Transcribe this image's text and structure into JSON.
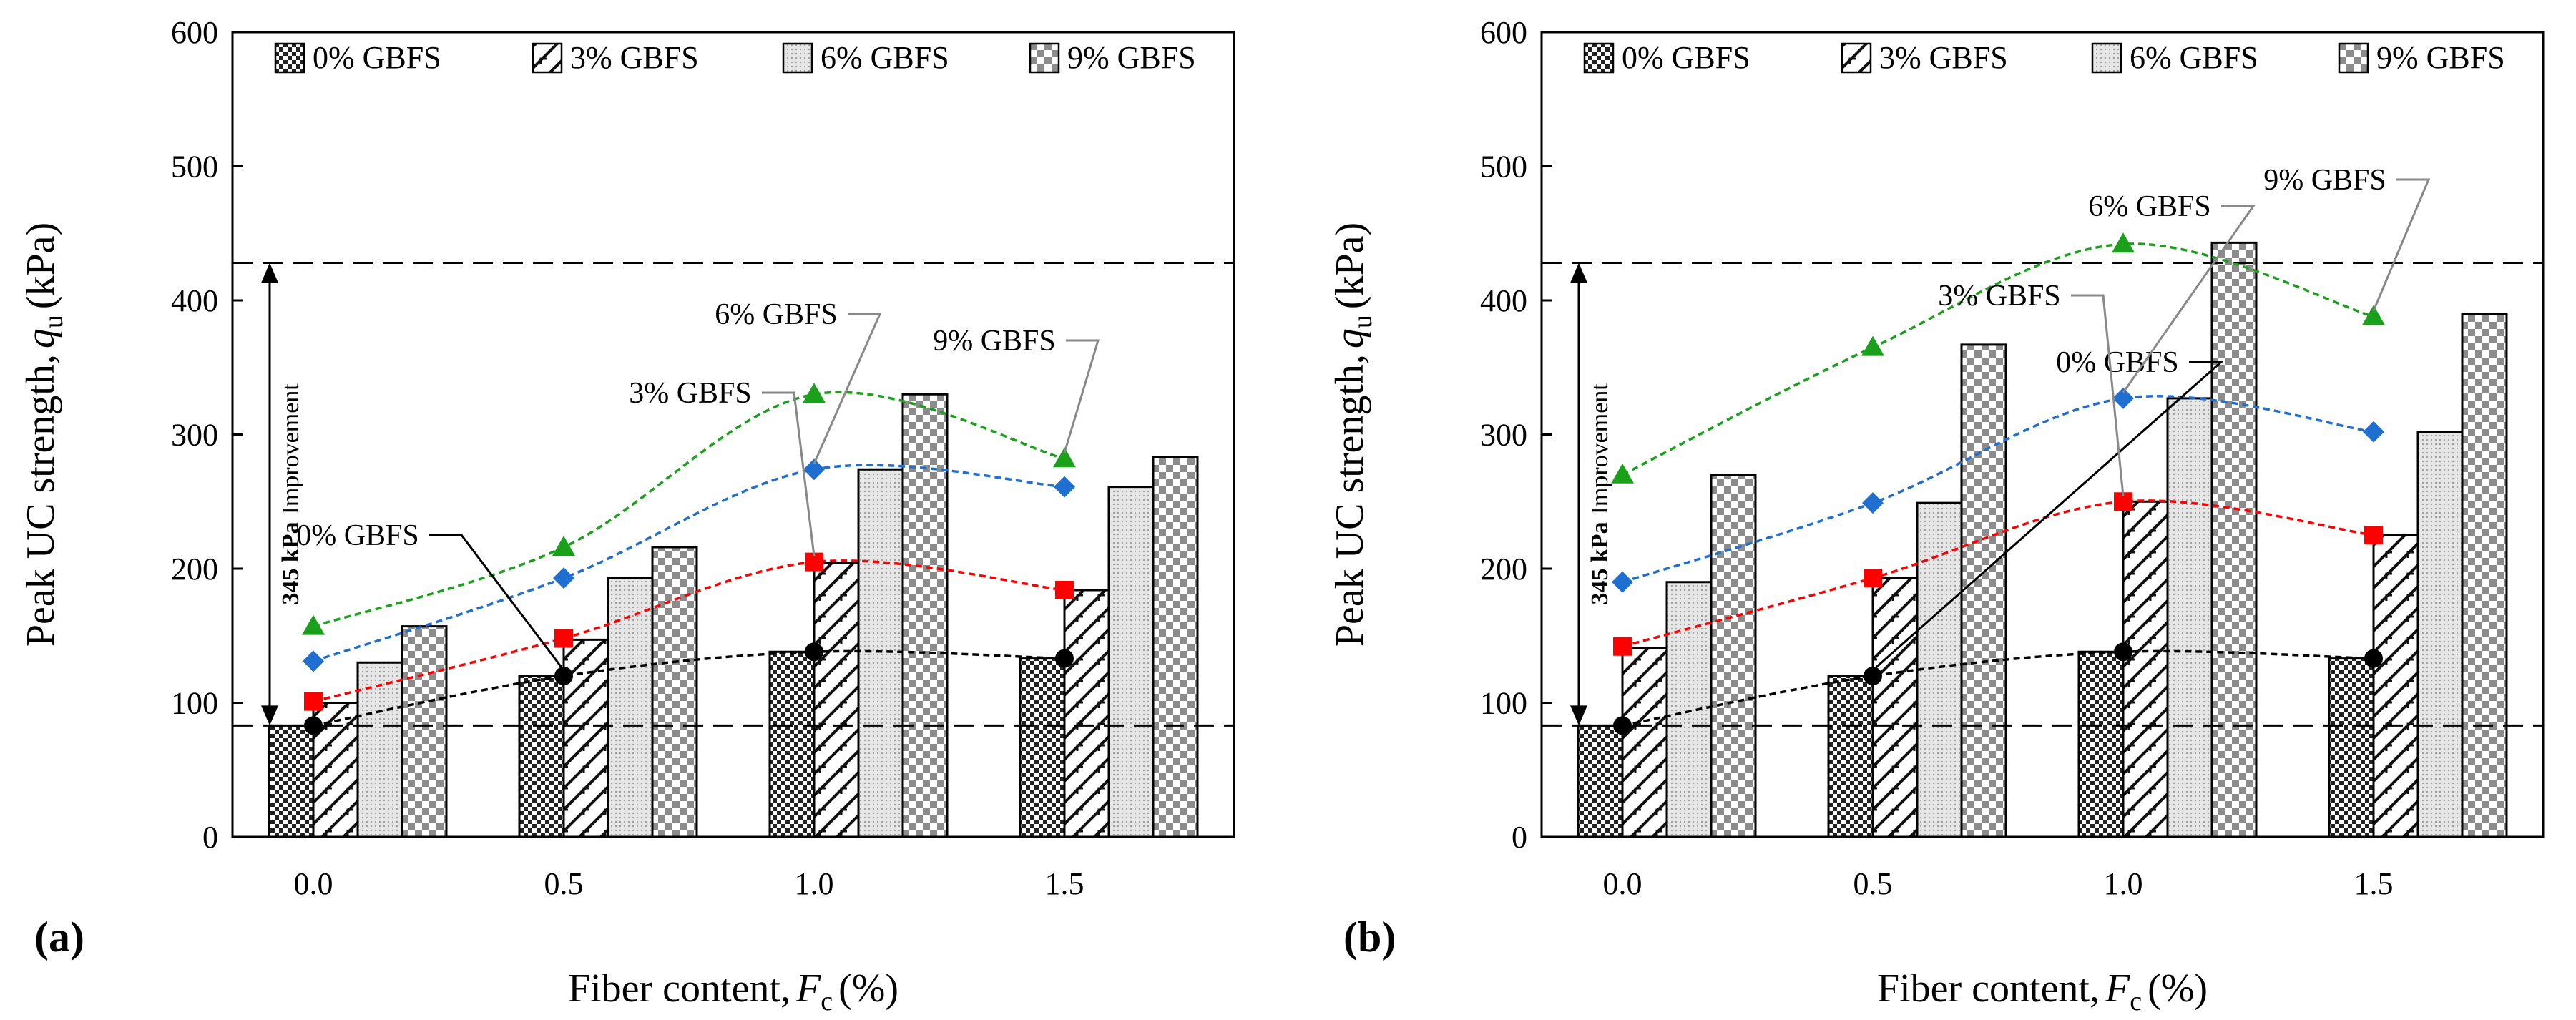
{
  "chart_data": [
    {
      "type": "bar",
      "panel_label": "(a)",
      "xlabel_main": "Fiber content,",
      "xlabel_symbol": "F",
      "xlabel_sub": "c",
      "xlabel_unit": "(%)",
      "ylabel_main": "Peak UC strength,",
      "ylabel_symbol": "q",
      "ylabel_sub": "u",
      "ylabel_unit": "(kPa)",
      "categories": [
        "0.0",
        "0.5",
        "1.0",
        "1.5"
      ],
      "ylim": [
        0,
        600
      ],
      "yticks": [
        "0",
        "100",
        "200",
        "300",
        "400",
        "500",
        "600"
      ],
      "series": [
        {
          "name": "0% GBFS",
          "values": [
            83,
            120,
            138,
            133
          ]
        },
        {
          "name": "3% GBFS",
          "values": [
            100,
            147,
            204,
            184
          ]
        },
        {
          "name": "6% GBFS",
          "values": [
            130,
            193,
            274,
            261
          ]
        },
        {
          "name": "9% GBFS",
          "values": [
            157,
            216,
            330,
            283
          ]
        }
      ],
      "trend_lines": [
        {
          "name": "0% GBFS",
          "color": "#000000",
          "marker": "circle",
          "values": [
            83,
            120,
            138,
            133
          ]
        },
        {
          "name": "3% GBFS",
          "color": "#ff0000",
          "marker": "square",
          "values": [
            101,
            148,
            205,
            184
          ]
        },
        {
          "name": "6% GBFS",
          "color": "#1f6fd1",
          "marker": "diamond",
          "values": [
            131,
            193,
            274,
            261
          ]
        },
        {
          "name": "9% GBFS",
          "color": "#1aa01a",
          "marker": "triangle",
          "values": [
            157,
            216,
            330,
            282
          ]
        }
      ],
      "reference_lines": [
        83,
        428
      ],
      "improvement": {
        "value": "345 kPa",
        "text": "Improvement"
      },
      "annotations": [
        {
          "text": "0% GBFS"
        },
        {
          "text": "3% GBFS"
        },
        {
          "text": "6% GBFS"
        },
        {
          "text": "9% GBFS"
        }
      ],
      "legend_position": "top"
    },
    {
      "type": "bar",
      "panel_label": "(b)",
      "xlabel_main": "Fiber content,",
      "xlabel_symbol": "F",
      "xlabel_sub": "c",
      "xlabel_unit": "(%)",
      "ylabel_main": "Peak UC strength,",
      "ylabel_symbol": "q",
      "ylabel_sub": "u",
      "ylabel_unit": "(kPa)",
      "categories": [
        "0.0",
        "0.5",
        "1.0",
        "1.5"
      ],
      "ylim": [
        0,
        600
      ],
      "yticks": [
        "0",
        "100",
        "200",
        "300",
        "400",
        "500",
        "600"
      ],
      "series": [
        {
          "name": "0% GBFS",
          "values": [
            83,
            120,
            138,
            133
          ]
        },
        {
          "name": "3% GBFS",
          "values": [
            141,
            193,
            250,
            225
          ]
        },
        {
          "name": "6% GBFS",
          "values": [
            190,
            249,
            327,
            302
          ]
        },
        {
          "name": "9% GBFS",
          "values": [
            270,
            367,
            443,
            390
          ]
        }
      ],
      "trend_lines": [
        {
          "name": "0% GBFS",
          "color": "#000000",
          "marker": "circle",
          "values": [
            83,
            120,
            138,
            133
          ]
        },
        {
          "name": "3% GBFS",
          "color": "#ff0000",
          "marker": "square",
          "values": [
            142,
            193,
            250,
            225
          ]
        },
        {
          "name": "6% GBFS",
          "color": "#1f6fd1",
          "marker": "diamond",
          "values": [
            190,
            249,
            327,
            302
          ]
        },
        {
          "name": "9% GBFS",
          "color": "#1aa01a",
          "marker": "triangle",
          "values": [
            270,
            365,
            442,
            388
          ]
        }
      ],
      "reference_lines": [
        83,
        428
      ],
      "improvement": {
        "value": "345 kPa",
        "text": "Improvement"
      },
      "annotations": [
        {
          "text": "0% GBFS"
        },
        {
          "text": "3% GBFS"
        },
        {
          "text": "6% GBFS"
        },
        {
          "text": "9% GBFS"
        }
      ],
      "legend_position": "top"
    }
  ]
}
